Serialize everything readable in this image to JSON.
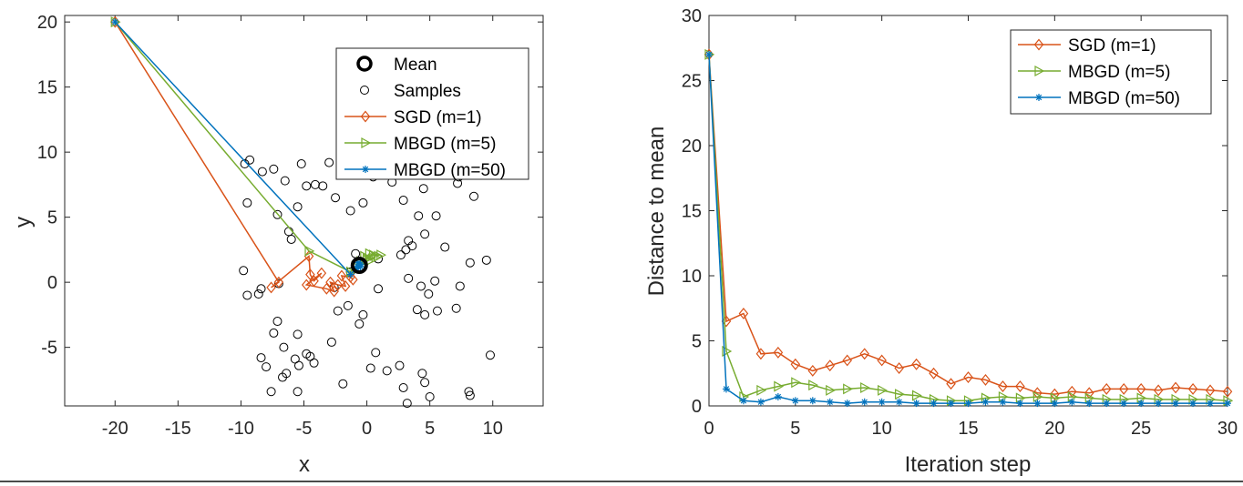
{
  "colors": {
    "sgd": "#d95319",
    "mbgd5": "#77ac30",
    "mbgd50": "#0072bd",
    "axis": "#262626",
    "samples": "#000000"
  },
  "chart_data": [
    {
      "type": "scatter",
      "xlabel": "x",
      "ylabel": "y",
      "xlim": [
        -24,
        14
      ],
      "ylim": [
        -9.5,
        20.5
      ],
      "xticks": [
        -20,
        -15,
        -10,
        -5,
        0,
        5,
        10
      ],
      "yticks": [
        -5,
        0,
        5,
        10,
        15,
        20
      ],
      "xtick_labels": [
        "-20",
        "-15",
        "-10",
        "-5",
        "0",
        "5",
        "10"
      ],
      "ytick_labels": [
        "-5",
        "0",
        "5",
        "10",
        "15",
        "20"
      ],
      "legend_position": "top-right",
      "legend": [
        "Mean",
        "Samples",
        "SGD (m=1)",
        "MBGD (m=5)",
        "MBGD (m=50)"
      ],
      "mean": {
        "x": -0.6,
        "y": 1.3
      },
      "samples": [
        [
          -9.7,
          9.1
        ],
        [
          -9.3,
          9.4
        ],
        [
          -8.3,
          8.5
        ],
        [
          -7.4,
          8.7
        ],
        [
          -6.5,
          7.8
        ],
        [
          -4.8,
          7.4
        ],
        [
          -4.1,
          7.5
        ],
        [
          -3.5,
          7.4
        ],
        [
          -5.2,
          9.1
        ],
        [
          -3.0,
          9.2
        ],
        [
          -5.5,
          5.8
        ],
        [
          -7.1,
          5.2
        ],
        [
          -6.2,
          3.9
        ],
        [
          -6.0,
          3.3
        ],
        [
          -9.5,
          6.1
        ],
        [
          -2.5,
          6.5
        ],
        [
          -1.3,
          5.5
        ],
        [
          -0.3,
          6.1
        ],
        [
          0.5,
          8.1
        ],
        [
          0.8,
          8.3
        ],
        [
          2.0,
          7.7
        ],
        [
          4.5,
          7.2
        ],
        [
          4.7,
          8.5
        ],
        [
          7.2,
          7.6
        ],
        [
          7.3,
          8.1
        ],
        [
          6.8,
          9.1
        ],
        [
          8.5,
          6.6
        ],
        [
          2.9,
          6.3
        ],
        [
          4.1,
          5.1
        ],
        [
          5.5,
          5.1
        ],
        [
          4.6,
          3.7
        ],
        [
          3.3,
          3.2
        ],
        [
          3.6,
          2.8
        ],
        [
          3.1,
          2.5
        ],
        [
          6.2,
          2.7
        ],
        [
          2.7,
          2.1
        ],
        [
          0.9,
          1.8
        ],
        [
          -0.9,
          2.2
        ],
        [
          -1.3,
          0.8
        ],
        [
          0.9,
          -0.5
        ],
        [
          3.3,
          0.3
        ],
        [
          4.3,
          -0.3
        ],
        [
          5.4,
          0.1
        ],
        [
          4.9,
          -0.9
        ],
        [
          7.4,
          -0.3
        ],
        [
          8.2,
          1.5
        ],
        [
          9.5,
          1.7
        ],
        [
          -9.8,
          0.9
        ],
        [
          -9.5,
          -1.0
        ],
        [
          -8.4,
          -0.5
        ],
        [
          -8.6,
          -0.9
        ],
        [
          -7.0,
          -0.1
        ],
        [
          -2.6,
          -0.4
        ],
        [
          -1.5,
          -1.8
        ],
        [
          -2.3,
          -2.2
        ],
        [
          -0.3,
          -2.5
        ],
        [
          -0.6,
          -3.2
        ],
        [
          4.0,
          -2.1
        ],
        [
          4.6,
          -2.5
        ],
        [
          5.6,
          -2.2
        ],
        [
          7.1,
          -2.0
        ],
        [
          -7.1,
          -3.0
        ],
        [
          -7.4,
          -3.9
        ],
        [
          -5.5,
          -4.0
        ],
        [
          -6.6,
          -5.0
        ],
        [
          -5.7,
          -5.9
        ],
        [
          -4.8,
          -5.5
        ],
        [
          -4.5,
          -5.7
        ],
        [
          -4.2,
          -6.2
        ],
        [
          -2.8,
          -4.6
        ],
        [
          -8.4,
          -5.8
        ],
        [
          -8.0,
          -6.5
        ],
        [
          -5.4,
          -6.4
        ],
        [
          -6.4,
          -7.0
        ],
        [
          -6.7,
          -7.3
        ],
        [
          0.7,
          -5.4
        ],
        [
          0.3,
          -6.6
        ],
        [
          1.6,
          -6.8
        ],
        [
          2.6,
          -6.4
        ],
        [
          4.4,
          -7.0
        ],
        [
          4.6,
          -7.7
        ],
        [
          -1.9,
          -7.8
        ],
        [
          -7.6,
          -8.4
        ],
        [
          -5.5,
          -8.4
        ],
        [
          2.9,
          -8.1
        ],
        [
          3.2,
          -9.3
        ],
        [
          5.0,
          -8.8
        ],
        [
          8.1,
          -8.4
        ],
        [
          8.2,
          -8.7
        ],
        [
          9.8,
          -5.6
        ]
      ],
      "series": [
        {
          "name": "SGD (m=1)",
          "marker": "diamond",
          "points": [
            [
              -20,
              20
            ],
            [
              -7.0,
              0.0
            ],
            [
              -7.6,
              -0.4
            ],
            [
              -4.6,
              2.0
            ],
            [
              -4.5,
              0.6
            ],
            [
              -4.2,
              0.1
            ],
            [
              -3.6,
              0.7
            ],
            [
              -4.8,
              -0.2
            ],
            [
              -3.2,
              -0.5
            ],
            [
              -2.6,
              -0.7
            ],
            [
              -2.9,
              0.0
            ],
            [
              -2.3,
              -0.2
            ],
            [
              -1.7,
              -0.3
            ],
            [
              -2.0,
              0.5
            ],
            [
              -1.3,
              0.4
            ],
            [
              -1.1,
              0.2
            ]
          ]
        },
        {
          "name": "MBGD (m=5)",
          "marker": "triangle-right",
          "points": [
            [
              -20,
              20
            ],
            [
              -4.6,
              2.4
            ],
            [
              -1.3,
              0.8
            ],
            [
              -0.9,
              1.2
            ],
            [
              -0.5,
              1.6
            ],
            [
              0.0,
              1.8
            ],
            [
              0.5,
              2.1
            ],
            [
              1.1,
              2.1
            ],
            [
              -0.2,
              2.0
            ],
            [
              0.3,
              1.7
            ],
            [
              0.7,
              1.9
            ],
            [
              -0.4,
              1.5
            ],
            [
              0.2,
              2.2
            ],
            [
              0.9,
              2.0
            ]
          ]
        },
        {
          "name": "MBGD (m=50)",
          "marker": "star",
          "points": [
            [
              -20,
              20
            ],
            [
              -1.3,
              0.6
            ],
            [
              -0.9,
              1.0
            ],
            [
              -0.7,
              1.2
            ],
            [
              -0.6,
              1.3
            ],
            [
              -0.5,
              1.4
            ],
            [
              -0.7,
              1.5
            ],
            [
              -0.5,
              1.2
            ]
          ]
        }
      ]
    },
    {
      "type": "line",
      "xlabel": "Iteration step",
      "ylabel": "Distance to mean",
      "xlim": [
        0,
        30
      ],
      "ylim": [
        0,
        30
      ],
      "xticks": [
        0,
        5,
        10,
        15,
        20,
        25,
        30
      ],
      "yticks": [
        0,
        5,
        10,
        15,
        20,
        25,
        30
      ],
      "xtick_labels": [
        "0",
        "5",
        "10",
        "15",
        "20",
        "25",
        "30"
      ],
      "ytick_labels": [
        "0",
        "5",
        "10",
        "15",
        "20",
        "25",
        "30"
      ],
      "legend_position": "top-right",
      "legend": [
        "SGD (m=1)",
        "MBGD (m=5)",
        "MBGD (m=50)"
      ],
      "x": [
        0,
        1,
        2,
        3,
        4,
        5,
        6,
        7,
        8,
        9,
        10,
        11,
        12,
        13,
        14,
        15,
        16,
        17,
        18,
        19,
        20,
        21,
        22,
        23,
        24,
        25,
        26,
        27,
        28,
        29,
        30
      ],
      "series": [
        {
          "name": "SGD (m=1)",
          "marker": "diamond",
          "values": [
            27.0,
            6.5,
            7.1,
            4.0,
            4.1,
            3.2,
            2.7,
            3.1,
            3.5,
            4.0,
            3.5,
            2.9,
            3.2,
            2.5,
            1.7,
            2.2,
            2.0,
            1.5,
            1.5,
            1.0,
            0.9,
            1.1,
            1.0,
            1.3,
            1.3,
            1.3,
            1.2,
            1.4,
            1.3,
            1.2,
            1.1
          ]
        },
        {
          "name": "MBGD (m=5)",
          "marker": "triangle-right",
          "values": [
            27.0,
            4.2,
            0.7,
            1.2,
            1.5,
            1.8,
            1.6,
            1.2,
            1.3,
            1.4,
            1.2,
            0.9,
            0.8,
            0.5,
            0.4,
            0.4,
            0.6,
            0.7,
            0.6,
            0.7,
            0.6,
            0.7,
            0.6,
            0.5,
            0.5,
            0.6,
            0.5,
            0.5,
            0.5,
            0.5,
            0.4
          ]
        },
        {
          "name": "MBGD (m=50)",
          "marker": "star",
          "values": [
            27.0,
            1.3,
            0.4,
            0.3,
            0.7,
            0.4,
            0.4,
            0.3,
            0.2,
            0.3,
            0.3,
            0.3,
            0.2,
            0.2,
            0.2,
            0.2,
            0.3,
            0.3,
            0.2,
            0.2,
            0.2,
            0.3,
            0.2,
            0.2,
            0.2,
            0.2,
            0.2,
            0.2,
            0.2,
            0.2,
            0.2
          ]
        }
      ]
    }
  ]
}
